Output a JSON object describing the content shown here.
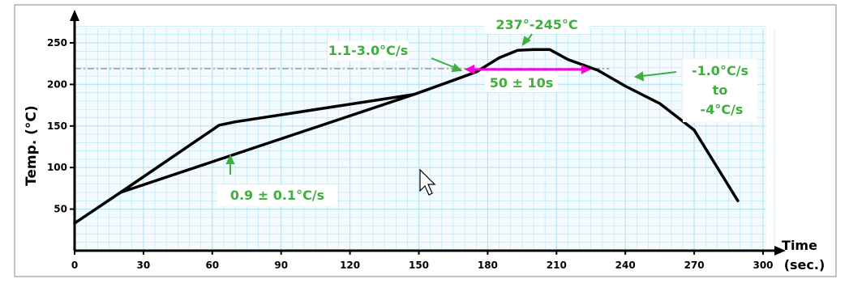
{
  "chart_data": {
    "type": "line",
    "title": "",
    "xlabel": "Time\n(sec.)",
    "ylabel": "Temp. (°C)",
    "xlim": [
      0,
      300
    ],
    "ylim": [
      0,
      270
    ],
    "x_ticks": [
      0,
      30,
      60,
      90,
      120,
      150,
      180,
      210,
      240,
      270,
      300
    ],
    "y_ticks": [
      50,
      100,
      150,
      200,
      250
    ],
    "grid": true,
    "series": [
      {
        "points": [
          [
            0,
            33
          ],
          [
            20,
            70
          ],
          [
            63,
            151
          ],
          [
            70,
            155
          ],
          [
            148,
            188
          ],
          [
            150,
            190
          ],
          [
            165,
            205
          ],
          [
            175,
            215
          ],
          [
            185,
            232
          ],
          [
            193,
            241
          ],
          [
            200,
            242
          ],
          [
            207,
            242
          ],
          [
            215,
            230
          ],
          [
            228,
            217
          ],
          [
            240,
            198
          ],
          [
            255,
            177
          ],
          [
            270,
            145
          ],
          [
            289,
            60
          ]
        ]
      },
      {
        "points": [
          [
            20,
            70
          ],
          [
            148,
            188
          ]
        ]
      }
    ],
    "reference_line_y": 219,
    "annotations": {
      "preheat_rate": "0.9 ± 0.1°C/s",
      "ramp_rate": "1.1-3.0°C/s",
      "peak": "237°-245°C",
      "time_above": "50 ± 10s",
      "cool_rate_1": "-1.0°C/s",
      "cool_rate_2": "to",
      "cool_rate_3": "-4°C/s"
    },
    "time_above_range": [
      170,
      225
    ],
    "colors": {
      "curve": "#000000",
      "annotation": "#3fae3f",
      "span_arrow": "#ff00d8",
      "grid": "#b8e4f4",
      "plot_bg": "#f3fbfe"
    }
  }
}
